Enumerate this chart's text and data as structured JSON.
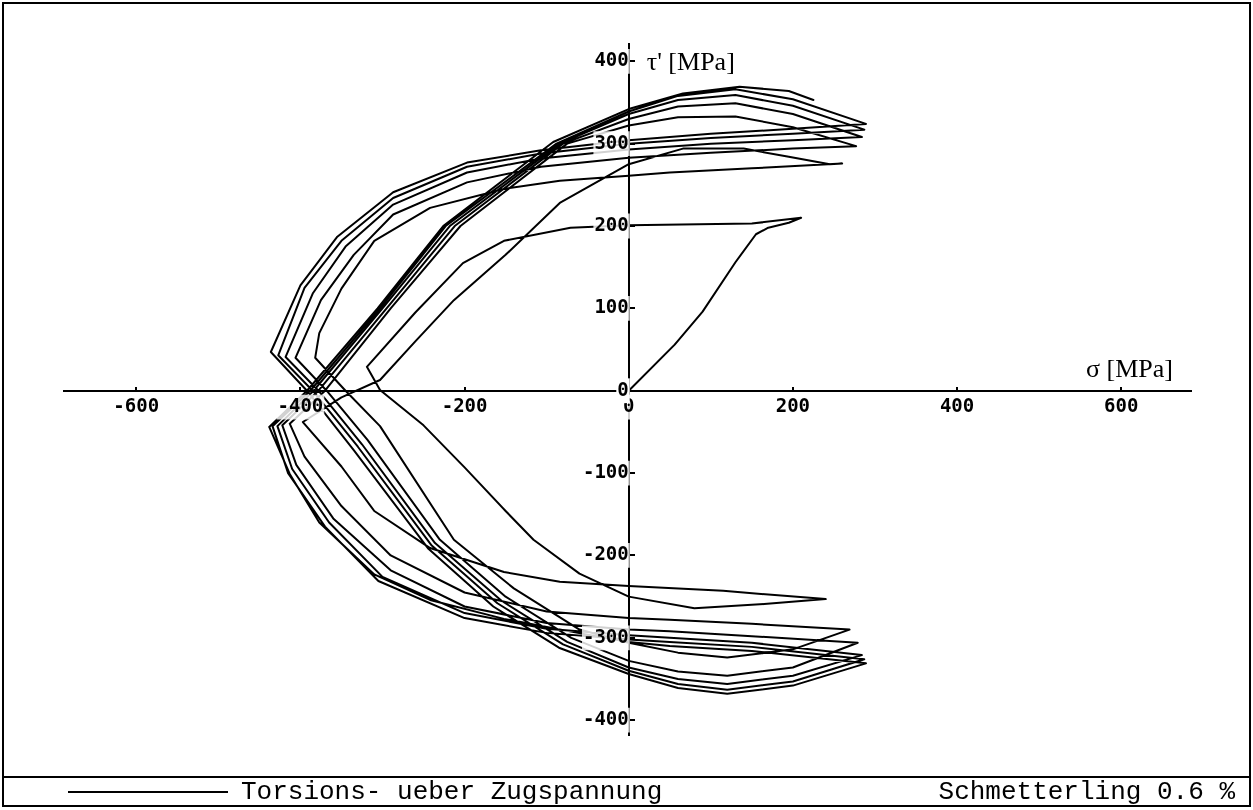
{
  "chart_data": {
    "type": "line",
    "title": "Schmetterling 0.6 %",
    "xlabel": "σ [MPa]",
    "ylabel": "τ' [MPa]",
    "xlim": [
      -688,
      685
    ],
    "ylim": [
      -418,
      421
    ],
    "xticks": [
      -600,
      -400,
      -200,
      0,
      200,
      400,
      600
    ],
    "yticks": [
      -400,
      -300,
      -200,
      -100,
      0,
      100,
      200,
      300,
      400
    ],
    "grid": false,
    "legend": "bottom left",
    "marker": "none",
    "line_style": "solid",
    "series": [
      {
        "name": "Torsions- ueber Zugspannung",
        "color": "#000000",
        "x": [
          0,
          56,
          90,
          130,
          155,
          170,
          195,
          210,
          150,
          0,
          -71,
          -152,
          -202,
          -260,
          -319,
          -303,
          -250,
          -200,
          -150,
          -116,
          -60,
          0,
          80,
          165,
          240,
          115,
          0,
          -84,
          -152,
          -242,
          -310,
          -350,
          -397,
          -350,
          -303,
          -260,
          -213,
          -150,
          -84,
          0,
          66,
          140,
          195,
          245,
          260,
          150,
          50,
          0,
          -84,
          -152,
          -242,
          -310,
          -350,
          -377,
          -382,
          -345,
          -303,
          -213,
          -140,
          -60,
          0,
          60,
          120,
          200,
          269,
          150,
          50,
          0,
          -100,
          -200,
          -290,
          -350,
          -395,
          -413,
          -370,
          -290,
          -205,
          -75,
          0,
          60,
          130,
          200,
          277,
          200,
          100,
          0,
          -107,
          -197,
          -287,
          -335,
          -375,
          -406,
          -368,
          -318,
          -230,
          -150,
          -70,
          0,
          60,
          120,
          200,
          279,
          150,
          50,
          0,
          -100,
          -200,
          -290,
          -360,
          -405,
          -422,
          -378,
          -295,
          -212,
          -80,
          0,
          60,
          130,
          200,
          284,
          200,
          100,
          0,
          -107,
          -197,
          -287,
          -345,
          -385,
          -418,
          -378,
          -325,
          -236,
          -155,
          -75,
          0,
          60,
          120,
          200,
          284,
          150,
          50,
          0,
          -100,
          -200,
          -300,
          -365,
          -410,
          -428,
          -384,
          -300,
          -218,
          -84,
          0,
          60,
          130,
          200,
          287,
          200,
          100,
          0,
          -107,
          -197,
          -287,
          -350,
          -395,
          -427,
          -385,
          -330,
          -240,
          -160,
          -80,
          0,
          60,
          120,
          200,
          287,
          150,
          50,
          0,
          -100,
          -200,
          -305,
          -370,
          -415,
          -434,
          -388,
          -303,
          -223,
          -88,
          0,
          60,
          130,
          200,
          289,
          200,
          100,
          0,
          -107,
          -197,
          -287,
          -355,
          -400,
          -436,
          -392,
          -335,
          -244,
          -165,
          -85,
          0,
          60,
          120,
          200,
          289,
          150,
          50,
          0,
          -62,
          -152,
          -242,
          -310,
          -377,
          -413,
          -438,
          -392,
          -306,
          -226,
          -92,
          0,
          66,
          135,
          195,
          225
        ],
        "values": [
          0,
          56,
          96,
          156,
          190,
          198,
          204,
          210,
          203,
          201,
          198,
          182,
          155,
          95,
          29,
          1,
          -42,
          -93,
          -146,
          -181,
          -222,
          -250,
          -264,
          -259,
          -253,
          -243,
          -237,
          -232,
          -220,
          -191,
          -146,
          -92,
          -38,
          -8,
          13,
          60,
          110,
          165,
          228,
          275,
          294,
          294,
          284,
          275,
          276,
          270,
          265,
          261,
          255,
          245,
          222,
          182,
          124,
          70,
          40,
          0,
          -43,
          -181,
          -240,
          -290,
          -306,
          -318,
          -324,
          -314,
          -290,
          -283,
          -278,
          -276,
          -268,
          -245,
          -200,
          -140,
          -80,
          -40,
          0,
          100,
          200,
          300,
          322,
          332,
          333,
          320,
          297,
          294,
          289,
          283,
          272,
          253,
          214,
          165,
          110,
          40,
          0,
          -60,
          -181,
          -250,
          -300,
          -328,
          -341,
          -346,
          -336,
          -306,
          -298,
          -292,
          -290,
          -282,
          -262,
          -218,
          -155,
          -90,
          -42,
          0,
          100,
          200,
          300,
          330,
          345,
          349,
          336,
          308,
          304,
          300,
          293,
          282,
          265,
          226,
          175,
          118,
          41,
          0,
          -65,
          -185,
          -255,
          -305,
          -336,
          -350,
          -356,
          -346,
          -321,
          -306,
          -300,
          -297,
          -289,
          -270,
          -226,
          -160,
          -95,
          -43,
          0,
          100,
          200,
          300,
          336,
          353,
          359,
          346,
          317,
          312,
          307,
          300,
          288,
          272,
          234,
          182,
          125,
          43,
          0,
          -68,
          -188,
          -258,
          -308,
          -340,
          -356,
          -363,
          -353,
          -326,
          -311,
          -305,
          -302,
          -294,
          -276,
          -231,
          -165,
          -100,
          -43,
          0,
          100,
          200,
          300,
          339,
          358,
          366,
          354,
          324,
          318,
          312,
          304,
          292,
          277,
          241,
          187,
          128,
          47,
          0,
          -72,
          -192,
          -262,
          -312,
          -344,
          -361,
          -368,
          -358,
          -331,
          -316,
          -310,
          -305,
          -294,
          -277,
          -254,
          -223,
          -160,
          -101,
          -44,
          0,
          100,
          200,
          302,
          342,
          361,
          369,
          364,
          353
        ]
      }
    ]
  }
}
